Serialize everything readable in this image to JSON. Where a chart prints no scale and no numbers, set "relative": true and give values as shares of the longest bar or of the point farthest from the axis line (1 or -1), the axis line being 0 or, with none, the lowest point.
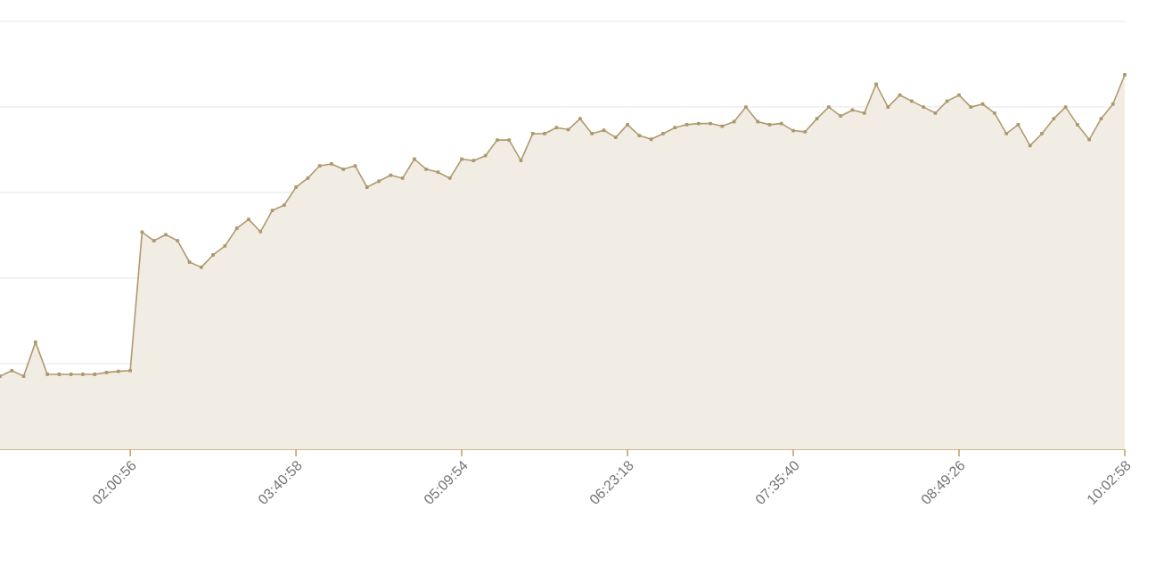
{
  "chart_data": {
    "type": "area",
    "relative": true,
    "grid": "y",
    "marker": "square",
    "color": "#b09a6e",
    "categories": [
      null,
      null,
      null,
      null,
      null,
      null,
      null,
      null,
      null,
      null,
      null,
      "02:00:56",
      null,
      null,
      null,
      null,
      null,
      null,
      null,
      null,
      null,
      null,
      null,
      null,
      null,
      "03:40:58",
      null,
      null,
      null,
      null,
      null,
      null,
      null,
      null,
      null,
      null,
      null,
      null,
      null,
      "05:09:54",
      null,
      null,
      null,
      null,
      null,
      null,
      null,
      null,
      null,
      null,
      null,
      null,
      null,
      "06:23:18",
      null,
      null,
      null,
      null,
      null,
      null,
      null,
      null,
      null,
      null,
      null,
      null,
      null,
      "07:35:40",
      null,
      null,
      null,
      null,
      null,
      null,
      null,
      null,
      null,
      null,
      null,
      null,
      null,
      "08:49:26",
      null,
      null,
      null,
      null,
      null,
      null,
      null,
      null,
      null,
      null,
      null,
      null,
      null,
      "10:02:58"
    ],
    "values": [
      0.195,
      0.21,
      0.195,
      0.286,
      0.2,
      0.2,
      0.2,
      0.2,
      0.2,
      0.205,
      0.208,
      0.21,
      0.58,
      0.557,
      0.573,
      0.557,
      0.5,
      0.486,
      0.519,
      0.543,
      0.59,
      0.614,
      0.581,
      0.638,
      0.652,
      0.7,
      0.724,
      0.757,
      0.762,
      0.748,
      0.757,
      0.7,
      0.716,
      0.732,
      0.724,
      0.775,
      0.748,
      0.74,
      0.724,
      0.775,
      0.771,
      0.784,
      0.826,
      0.826,
      0.771,
      0.843,
      0.843,
      0.859,
      0.854,
      0.883,
      0.843,
      0.852,
      0.833,
      0.867,
      0.838,
      0.828,
      0.843,
      0.859,
      0.867,
      0.87,
      0.87,
      0.863,
      0.875,
      0.914,
      0.875,
      0.867,
      0.87,
      0.851,
      0.848,
      0.883,
      0.914,
      0.89,
      0.906,
      0.898,
      0.975,
      0.914,
      0.946,
      0.93,
      0.914,
      0.898,
      0.93,
      0.946,
      0.914,
      0.922,
      0.898,
      0.843,
      0.867,
      0.811,
      0.843,
      0.883,
      0.914,
      0.867,
      0.827,
      0.883,
      0.922,
      1
    ]
  }
}
